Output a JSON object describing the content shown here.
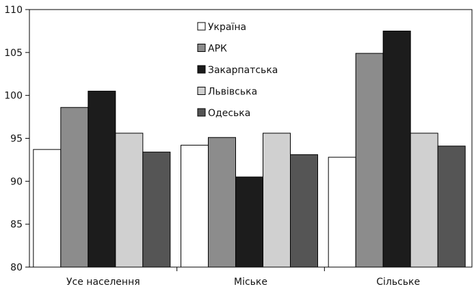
{
  "chart_data": {
    "type": "bar",
    "categories": [
      "Усе населення",
      "Міське",
      "Сільське"
    ],
    "series": [
      {
        "name": "Україна",
        "values": [
          93.7,
          94.2,
          92.8
        ]
      },
      {
        "name": "АРК",
        "values": [
          98.6,
          95.1,
          104.9
        ]
      },
      {
        "name": "Закарпатська",
        "values": [
          100.5,
          90.5,
          107.5
        ]
      },
      {
        "name": "Львівська",
        "values": [
          95.6,
          95.6,
          95.6
        ]
      },
      {
        "name": "Одеська",
        "values": [
          93.4,
          93.1,
          94.1
        ]
      }
    ],
    "series_colors": [
      "#ffffff",
      "#8c8c8c",
      "#1c1c1c",
      "#d0d0d0",
      "#555555"
    ],
    "ylim": [
      80,
      110
    ],
    "yticks": [
      80,
      85,
      90,
      95,
      100,
      105,
      110
    ],
    "grid": false,
    "legend_position": "top-center"
  }
}
